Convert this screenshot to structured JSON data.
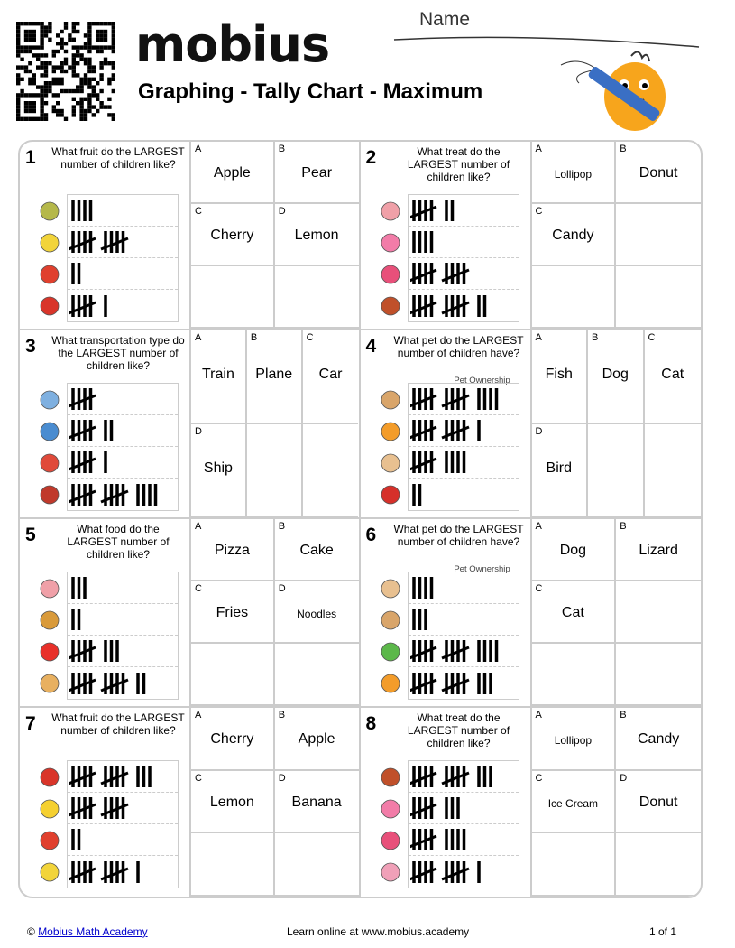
{
  "header": {
    "logo": "mobius",
    "title": "Graphing - Tally Chart - Maximum",
    "name_label": "Name"
  },
  "problems": [
    {
      "num": "1",
      "question": "What fruit do the LARGEST number of children like?",
      "chart_title": "",
      "rows": [
        {
          "icon": "pear",
          "count": 4
        },
        {
          "icon": "lemon",
          "count": 10
        },
        {
          "icon": "apple",
          "count": 2
        },
        {
          "icon": "cherry",
          "count": 6
        }
      ],
      "options": [
        {
          "letter": "A",
          "text": "Apple"
        },
        {
          "letter": "B",
          "text": "Pear"
        },
        {
          "letter": "C",
          "text": "Cherry"
        },
        {
          "letter": "D",
          "text": "Lemon"
        }
      ]
    },
    {
      "num": "2",
      "question": "What treat do the LARGEST number of children like?",
      "chart_title": "",
      "rows": [
        {
          "icon": "cake",
          "count": 7
        },
        {
          "icon": "donut",
          "count": 4
        },
        {
          "icon": "lollipop",
          "count": 10
        },
        {
          "icon": "candy",
          "count": 12
        }
      ],
      "options": [
        {
          "letter": "A",
          "text": "Lollipop"
        },
        {
          "letter": "B",
          "text": "Donut"
        },
        {
          "letter": "C",
          "text": "Candy"
        }
      ]
    },
    {
      "num": "3",
      "question": "What transportation type do the LARGEST number of children like?",
      "chart_title": "",
      "rows": [
        {
          "icon": "plane",
          "count": 5
        },
        {
          "icon": "ship",
          "count": 7
        },
        {
          "icon": "car",
          "count": 6
        },
        {
          "icon": "train",
          "count": 14
        }
      ],
      "options": [
        {
          "letter": "A",
          "text": "Train"
        },
        {
          "letter": "B",
          "text": "Plane"
        },
        {
          "letter": "C",
          "text": "Car"
        },
        {
          "letter": "D",
          "text": "Ship"
        }
      ]
    },
    {
      "num": "4",
      "question": "What pet do the LARGEST number of children have?",
      "chart_title": "Pet Ownership",
      "rows": [
        {
          "icon": "dog",
          "count": 14
        },
        {
          "icon": "fish",
          "count": 11
        },
        {
          "icon": "cat",
          "count": 9
        },
        {
          "icon": "bird",
          "count": 2
        }
      ],
      "options": [
        {
          "letter": "A",
          "text": "Fish"
        },
        {
          "letter": "B",
          "text": "Dog"
        },
        {
          "letter": "C",
          "text": "Cat"
        },
        {
          "letter": "D",
          "text": "Bird"
        }
      ]
    },
    {
      "num": "5",
      "question": "What food do the LARGEST number of children like?",
      "chart_title": "",
      "rows": [
        {
          "icon": "cake",
          "count": 3
        },
        {
          "icon": "pizza",
          "count": 2
        },
        {
          "icon": "fries",
          "count": 8
        },
        {
          "icon": "noodles",
          "count": 12
        }
      ],
      "options": [
        {
          "letter": "A",
          "text": "Pizza"
        },
        {
          "letter": "B",
          "text": "Cake"
        },
        {
          "letter": "C",
          "text": "Fries"
        },
        {
          "letter": "D",
          "text": "Noodles"
        }
      ]
    },
    {
      "num": "6",
      "question": "What pet do the LARGEST number of children have?",
      "chart_title": "Pet Ownership",
      "rows": [
        {
          "icon": "cat",
          "count": 4
        },
        {
          "icon": "dog",
          "count": 3
        },
        {
          "icon": "lizard",
          "count": 14
        },
        {
          "icon": "fish",
          "count": 13
        }
      ],
      "options": [
        {
          "letter": "A",
          "text": "Dog"
        },
        {
          "letter": "B",
          "text": "Lizard"
        },
        {
          "letter": "C",
          "text": "Cat"
        }
      ]
    },
    {
      "num": "7",
      "question": "What fruit do the LARGEST number of children like?",
      "chart_title": "",
      "rows": [
        {
          "icon": "cherry",
          "count": 13
        },
        {
          "icon": "banana",
          "count": 10
        },
        {
          "icon": "apple",
          "count": 2
        },
        {
          "icon": "lemon",
          "count": 11
        }
      ],
      "options": [
        {
          "letter": "A",
          "text": "Cherry"
        },
        {
          "letter": "B",
          "text": "Apple"
        },
        {
          "letter": "C",
          "text": "Lemon"
        },
        {
          "letter": "D",
          "text": "Banana"
        }
      ]
    },
    {
      "num": "8",
      "question": "What treat do the LARGEST number of children like?",
      "chart_title": "",
      "rows": [
        {
          "icon": "candy",
          "count": 13
        },
        {
          "icon": "donut",
          "count": 8
        },
        {
          "icon": "lollipop",
          "count": 9
        },
        {
          "icon": "ice-cream",
          "count": 11
        }
      ],
      "options": [
        {
          "letter": "A",
          "text": "Lollipop"
        },
        {
          "letter": "B",
          "text": "Candy"
        },
        {
          "letter": "C",
          "text": "Ice Cream"
        },
        {
          "letter": "D",
          "text": "Donut"
        }
      ]
    }
  ],
  "icon_colors": {
    "pear": "#b5b84a",
    "lemon": "#f2d43a",
    "apple": "#e0402e",
    "cherry": "#d9352a",
    "cake": "#f0a0a8",
    "donut": "#f27ca8",
    "lollipop": "#e8507a",
    "candy": "#c0502a",
    "plane": "#7fb0e0",
    "ship": "#4a8cd0",
    "car": "#e04a3a",
    "train": "#c0392b",
    "dog": "#d9a56a",
    "fish": "#f39c2a",
    "cat": "#e8c090",
    "bird": "#d6302a",
    "pizza": "#d99a3a",
    "fries": "#e8302a",
    "noodles": "#e8b060",
    "lizard": "#5cb84a",
    "banana": "#f5d030",
    "ice-cream": "#f0a0b8"
  },
  "footer": {
    "copyright": "© ",
    "link": "Mobius Math Academy",
    "center": "Learn online at www.mobius.academy",
    "page": "1 of 1"
  }
}
